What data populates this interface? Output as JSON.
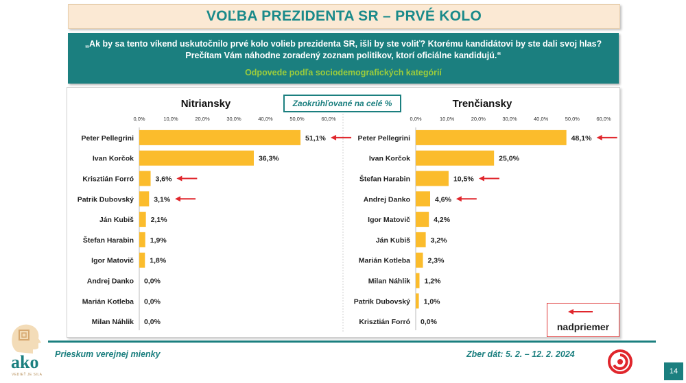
{
  "title": "VOĽBA PREZIDENTA SR – PRVÉ KOLO",
  "question": {
    "line1": "„Ak by sa tento víkend uskutočnilo prvé kolo volieb prezidenta SR, išli by ste voliť? Ktorému kandidátovi by ste dali svoj hlas?",
    "line2": "Prečítam Vám náhodne zoradený zoznam politikov, ktorí oficiálne kandidujú.“",
    "subtitle": "Odpovede podľa sociodemografických kategórií"
  },
  "note": "Zaokrúhľované na celé %",
  "legend": {
    "label": "nadpriemer",
    "icon": "red-arrow-left-icon",
    "color": "#e0262c"
  },
  "colors": {
    "bar": "#fbbc2c",
    "teal": "#1b7f7f",
    "arrow": "#e0262c"
  },
  "chart_data": [
    {
      "type": "bar",
      "orientation": "horizontal",
      "title": "Nitriansky",
      "xlim": [
        0,
        60
      ],
      "ticks": [
        "0,0%",
        "10,0%",
        "20,0%",
        "30,0%",
        "40,0%",
        "50,0%",
        "60,0%"
      ],
      "tick_values": [
        0,
        10,
        20,
        30,
        40,
        50,
        60
      ],
      "categories": [
        "Peter Pellegrini",
        "Ivan Korčok",
        "Krisztián Forró",
        "Patrik Dubovský",
        "Ján Kubiš",
        "Štefan Harabin",
        "Igor Matovič",
        "Andrej Danko",
        "Marián Kotleba",
        "Milan Náhlik"
      ],
      "values": [
        51.1,
        36.3,
        3.6,
        3.1,
        2.1,
        1.9,
        1.8,
        0.0,
        0.0,
        0.0
      ],
      "labels": [
        "51,1%",
        "36,3%",
        "3,6%",
        "3,1%",
        "2,1%",
        "1,9%",
        "1,8%",
        "0,0%",
        "0,0%",
        "0,0%"
      ],
      "above_average": [
        "Peter Pellegrini",
        "Krisztián Forró",
        "Patrik Dubovský"
      ]
    },
    {
      "type": "bar",
      "orientation": "horizontal",
      "title": "Trenčiansky",
      "xlim": [
        0,
        60
      ],
      "ticks": [
        "0,0%",
        "10,0%",
        "20,0%",
        "30,0%",
        "40,0%",
        "50,0%",
        "60,0%"
      ],
      "tick_values": [
        0,
        10,
        20,
        30,
        40,
        50,
        60
      ],
      "categories": [
        "Peter Pellegrini",
        "Ivan Korčok",
        "Štefan Harabin",
        "Andrej Danko",
        "Igor Matovič",
        "Ján Kubiš",
        "Marián Kotleba",
        "Milan Náhlik",
        "Patrik Dubovský",
        "Krisztián Forró"
      ],
      "values": [
        48.1,
        25.0,
        10.5,
        4.6,
        4.2,
        3.2,
        2.3,
        1.2,
        1.0,
        0.0
      ],
      "labels": [
        "48,1%",
        "25,0%",
        "10,5%",
        "4,6%",
        "4,2%",
        "3,2%",
        "2,3%",
        "1,2%",
        "1,0%",
        "0,0%"
      ],
      "above_average": [
        "Peter Pellegrini",
        "Štefan Harabin",
        "Andrej Danko"
      ]
    }
  ],
  "footer": {
    "left": "Prieskum verejnej mienky",
    "right": "Zber dát: 5. 2. – 12. 2. 2024",
    "page": "14",
    "logo_text": "ako",
    "logo_tagline": "VEDIEŤ JE SILA"
  }
}
